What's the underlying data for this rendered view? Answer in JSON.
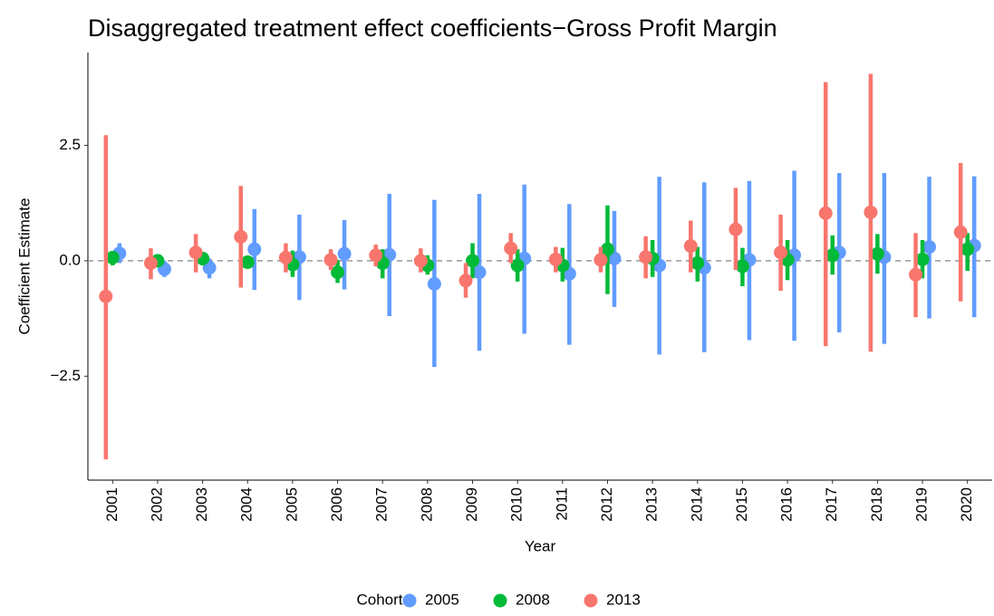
{
  "chart_data": {
    "type": "errorbar",
    "title": "Disaggregated treatment effect coefficients−Gross Profit Margin",
    "x_label": "Year",
    "y_label": "Coefficient Estimate",
    "legend_title": "Cohort",
    "legend_position": "bottom",
    "categories": [
      "2001",
      "2002",
      "2003",
      "2004",
      "2005",
      "2006",
      "2007",
      "2008",
      "2009",
      "2010",
      "2011",
      "2012",
      "2013",
      "2014",
      "2015",
      "2016",
      "2017",
      "2018",
      "2019",
      "2020"
    ],
    "ylim": [
      -4.75,
      4.51
    ],
    "yticks": [
      {
        "value": -2.5,
        "label": "−2.5"
      },
      {
        "value": 0,
        "label": "0.0"
      },
      {
        "value": 2.5,
        "label": "2.5"
      }
    ],
    "reference_line": 0,
    "series": [
      {
        "name": "2005",
        "color": "#619cff",
        "values": [
          0.16,
          -0.18,
          -0.15,
          0.25,
          0.08,
          0.15,
          0.13,
          -0.5,
          -0.25,
          0.05,
          -0.28,
          0.05,
          -0.1,
          -0.15,
          0.02,
          0.12,
          0.18,
          0.08,
          0.3,
          0.33
        ],
        "lower": [
          -0.05,
          -0.35,
          -0.38,
          -0.63,
          -0.85,
          -0.62,
          -1.2,
          -2.3,
          -1.95,
          -1.58,
          -1.82,
          -1.0,
          -2.03,
          -1.98,
          -1.72,
          -1.73,
          -1.55,
          -1.8,
          -1.25,
          -1.22
        ],
        "upper": [
          0.38,
          0.0,
          0.05,
          1.12,
          1.0,
          0.88,
          1.45,
          1.32,
          1.45,
          1.65,
          1.23,
          1.08,
          1.82,
          1.7,
          1.73,
          1.95,
          1.9,
          1.9,
          1.82,
          1.83
        ]
      },
      {
        "name": "2008",
        "color": "#00ba38",
        "values": [
          0.07,
          0.0,
          0.05,
          -0.03,
          -0.08,
          -0.25,
          -0.05,
          -0.1,
          0.0,
          -0.1,
          -0.1,
          0.25,
          0.05,
          -0.05,
          -0.12,
          0.02,
          0.12,
          0.15,
          0.03,
          0.25
        ],
        "lower": [
          -0.1,
          -0.1,
          -0.1,
          -0.1,
          -0.35,
          -0.48,
          -0.38,
          -0.3,
          -0.38,
          -0.45,
          -0.45,
          -0.72,
          -0.35,
          -0.45,
          -0.55,
          -0.42,
          -0.3,
          -0.28,
          -0.38,
          -0.22
        ],
        "upper": [
          0.2,
          0.12,
          0.18,
          0.05,
          0.22,
          0.02,
          0.25,
          0.12,
          0.38,
          0.25,
          0.28,
          1.2,
          0.45,
          0.3,
          0.28,
          0.45,
          0.55,
          0.58,
          0.45,
          0.6
        ]
      },
      {
        "name": "2013",
        "color": "#f8766d",
        "values": [
          -0.77,
          -0.05,
          0.18,
          0.52,
          0.07,
          0.02,
          0.12,
          0.0,
          -0.43,
          0.27,
          0.03,
          0.02,
          0.08,
          0.32,
          0.68,
          0.18,
          1.03,
          1.05,
          -0.3,
          0.62
        ],
        "lower": [
          -4.3,
          -0.4,
          -0.25,
          -0.58,
          -0.25,
          -0.2,
          -0.12,
          -0.25,
          -0.8,
          -0.05,
          -0.25,
          -0.25,
          -0.38,
          -0.25,
          -0.2,
          -0.65,
          -1.85,
          -1.97,
          -1.22,
          -0.88
        ],
        "upper": [
          2.72,
          0.27,
          0.58,
          1.62,
          0.38,
          0.25,
          0.35,
          0.27,
          -0.05,
          0.6,
          0.3,
          0.3,
          0.53,
          0.87,
          1.58,
          1.0,
          3.87,
          4.05,
          0.6,
          2.12
        ]
      }
    ]
  }
}
